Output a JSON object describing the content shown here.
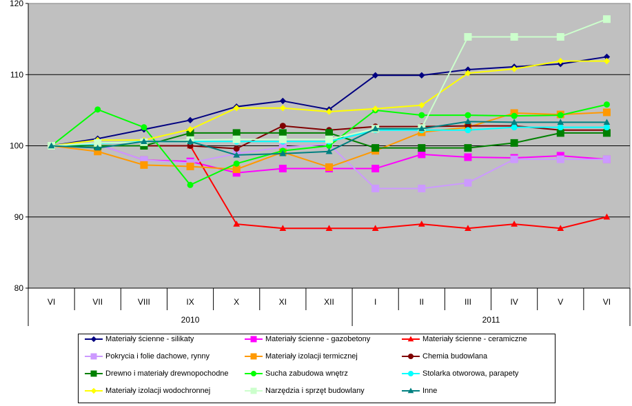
{
  "chart_data": {
    "type": "line",
    "categories": [
      "VI",
      "VII",
      "VIII",
      "IX",
      "X",
      "XI",
      "XII",
      "I",
      "II",
      "III",
      "IV",
      "V",
      "VI"
    ],
    "year_groups": [
      {
        "label": "2010",
        "count": 7
      },
      {
        "label": "2011",
        "count": 6
      }
    ],
    "ylim": [
      80,
      120
    ],
    "yticks": [
      "80",
      "90",
      "100",
      "110",
      "120"
    ],
    "grid": true,
    "plot_background": "#C0C0C0",
    "legend_position": "bottom",
    "series": [
      {
        "name": "Materiały ścienne - silikaty",
        "color": "#000080",
        "marker": "diamond",
        "values": [
          100,
          101,
          102.3,
          103.6,
          105.5,
          106.3,
          105.1,
          109.9,
          109.9,
          110.7,
          111.1,
          111.5,
          112.5
        ]
      },
      {
        "name": "Materiały ścienne - gazobetony",
        "color": "#FF00FF",
        "marker": "square",
        "values": [
          100,
          100.2,
          98,
          97.8,
          96.2,
          96.8,
          96.8,
          96.8,
          98.8,
          98.4,
          98.3,
          98.6,
          98.1
        ]
      },
      {
        "name": "Materiały ścienne - ceramiczne",
        "color": "#FF0000",
        "marker": "triangle",
        "values": [
          100,
          100,
          100,
          100,
          89,
          88.4,
          88.4,
          88.4,
          89,
          88.4,
          89,
          88.4,
          90
        ]
      },
      {
        "name": "Pokrycia i folie dachowe, rynny",
        "color": "#CC99FF",
        "marker": "square",
        "values": [
          100,
          100.2,
          98,
          97.6,
          98.9,
          99.8,
          100.2,
          94,
          94,
          94.8,
          98.1,
          98.1,
          98.1
        ]
      },
      {
        "name": "Materiały izolacji termicznej",
        "color": "#FF9900",
        "marker": "square",
        "values": [
          100,
          99.2,
          97.3,
          97.1,
          96.7,
          99.1,
          97,
          99.3,
          101.9,
          102.6,
          104.6,
          104.4,
          104.7
        ]
      },
      {
        "name": "Chemia budowlana",
        "color": "#800000",
        "marker": "circle",
        "values": [
          100,
          100,
          100,
          100,
          99.6,
          102.8,
          102.2,
          102.7,
          102.7,
          102.8,
          102.8,
          102.2,
          102.2
        ]
      },
      {
        "name": "Drewno i materiały drewnopochodne",
        "color": "#008000",
        "marker": "square",
        "values": [
          100,
          100,
          100,
          101.8,
          101.8,
          101.8,
          101.8,
          99.7,
          99.7,
          99.7,
          100.4,
          101.8,
          101.8
        ]
      },
      {
        "name": "Sucha zabudowa wnętrz",
        "color": "#00FF00",
        "marker": "circle",
        "values": [
          100,
          105.1,
          102.6,
          94.5,
          97.5,
          99.3,
          100,
          105,
          104.3,
          104.3,
          104.2,
          104.3,
          105.8
        ]
      },
      {
        "name": "Stolarka otworowa, parapety",
        "color": "#00FFFF",
        "marker": "circle",
        "values": [
          100,
          100.3,
          100.6,
          100.6,
          100.6,
          100.6,
          100.6,
          102.2,
          102.2,
          102.2,
          102.6,
          102.6,
          102.6
        ]
      },
      {
        "name": "Materiały izolacji wodochronnej",
        "color": "#FFFF00",
        "marker": "diamond",
        "values": [
          100,
          100.8,
          100.8,
          102.3,
          105.3,
          105.3,
          104.8,
          105.2,
          105.7,
          110.2,
          110.8,
          111.9,
          111.9
        ]
      },
      {
        "name": "Narzędzia i sprzęt budowlany",
        "color": "#CCFFCC",
        "marker": "square",
        "values": [
          100,
          100.4,
          100.5,
          100.8,
          100.9,
          100.9,
          100.9,
          102.4,
          102.5,
          115.3,
          115.3,
          115.3,
          117.8
        ]
      },
      {
        "name": "Inne",
        "color": "#008080",
        "marker": "triangle",
        "values": [
          100,
          99.7,
          100.6,
          100.6,
          98.7,
          98.9,
          99.2,
          102.4,
          102.4,
          103.4,
          103.3,
          103.3,
          103.3
        ]
      }
    ]
  }
}
